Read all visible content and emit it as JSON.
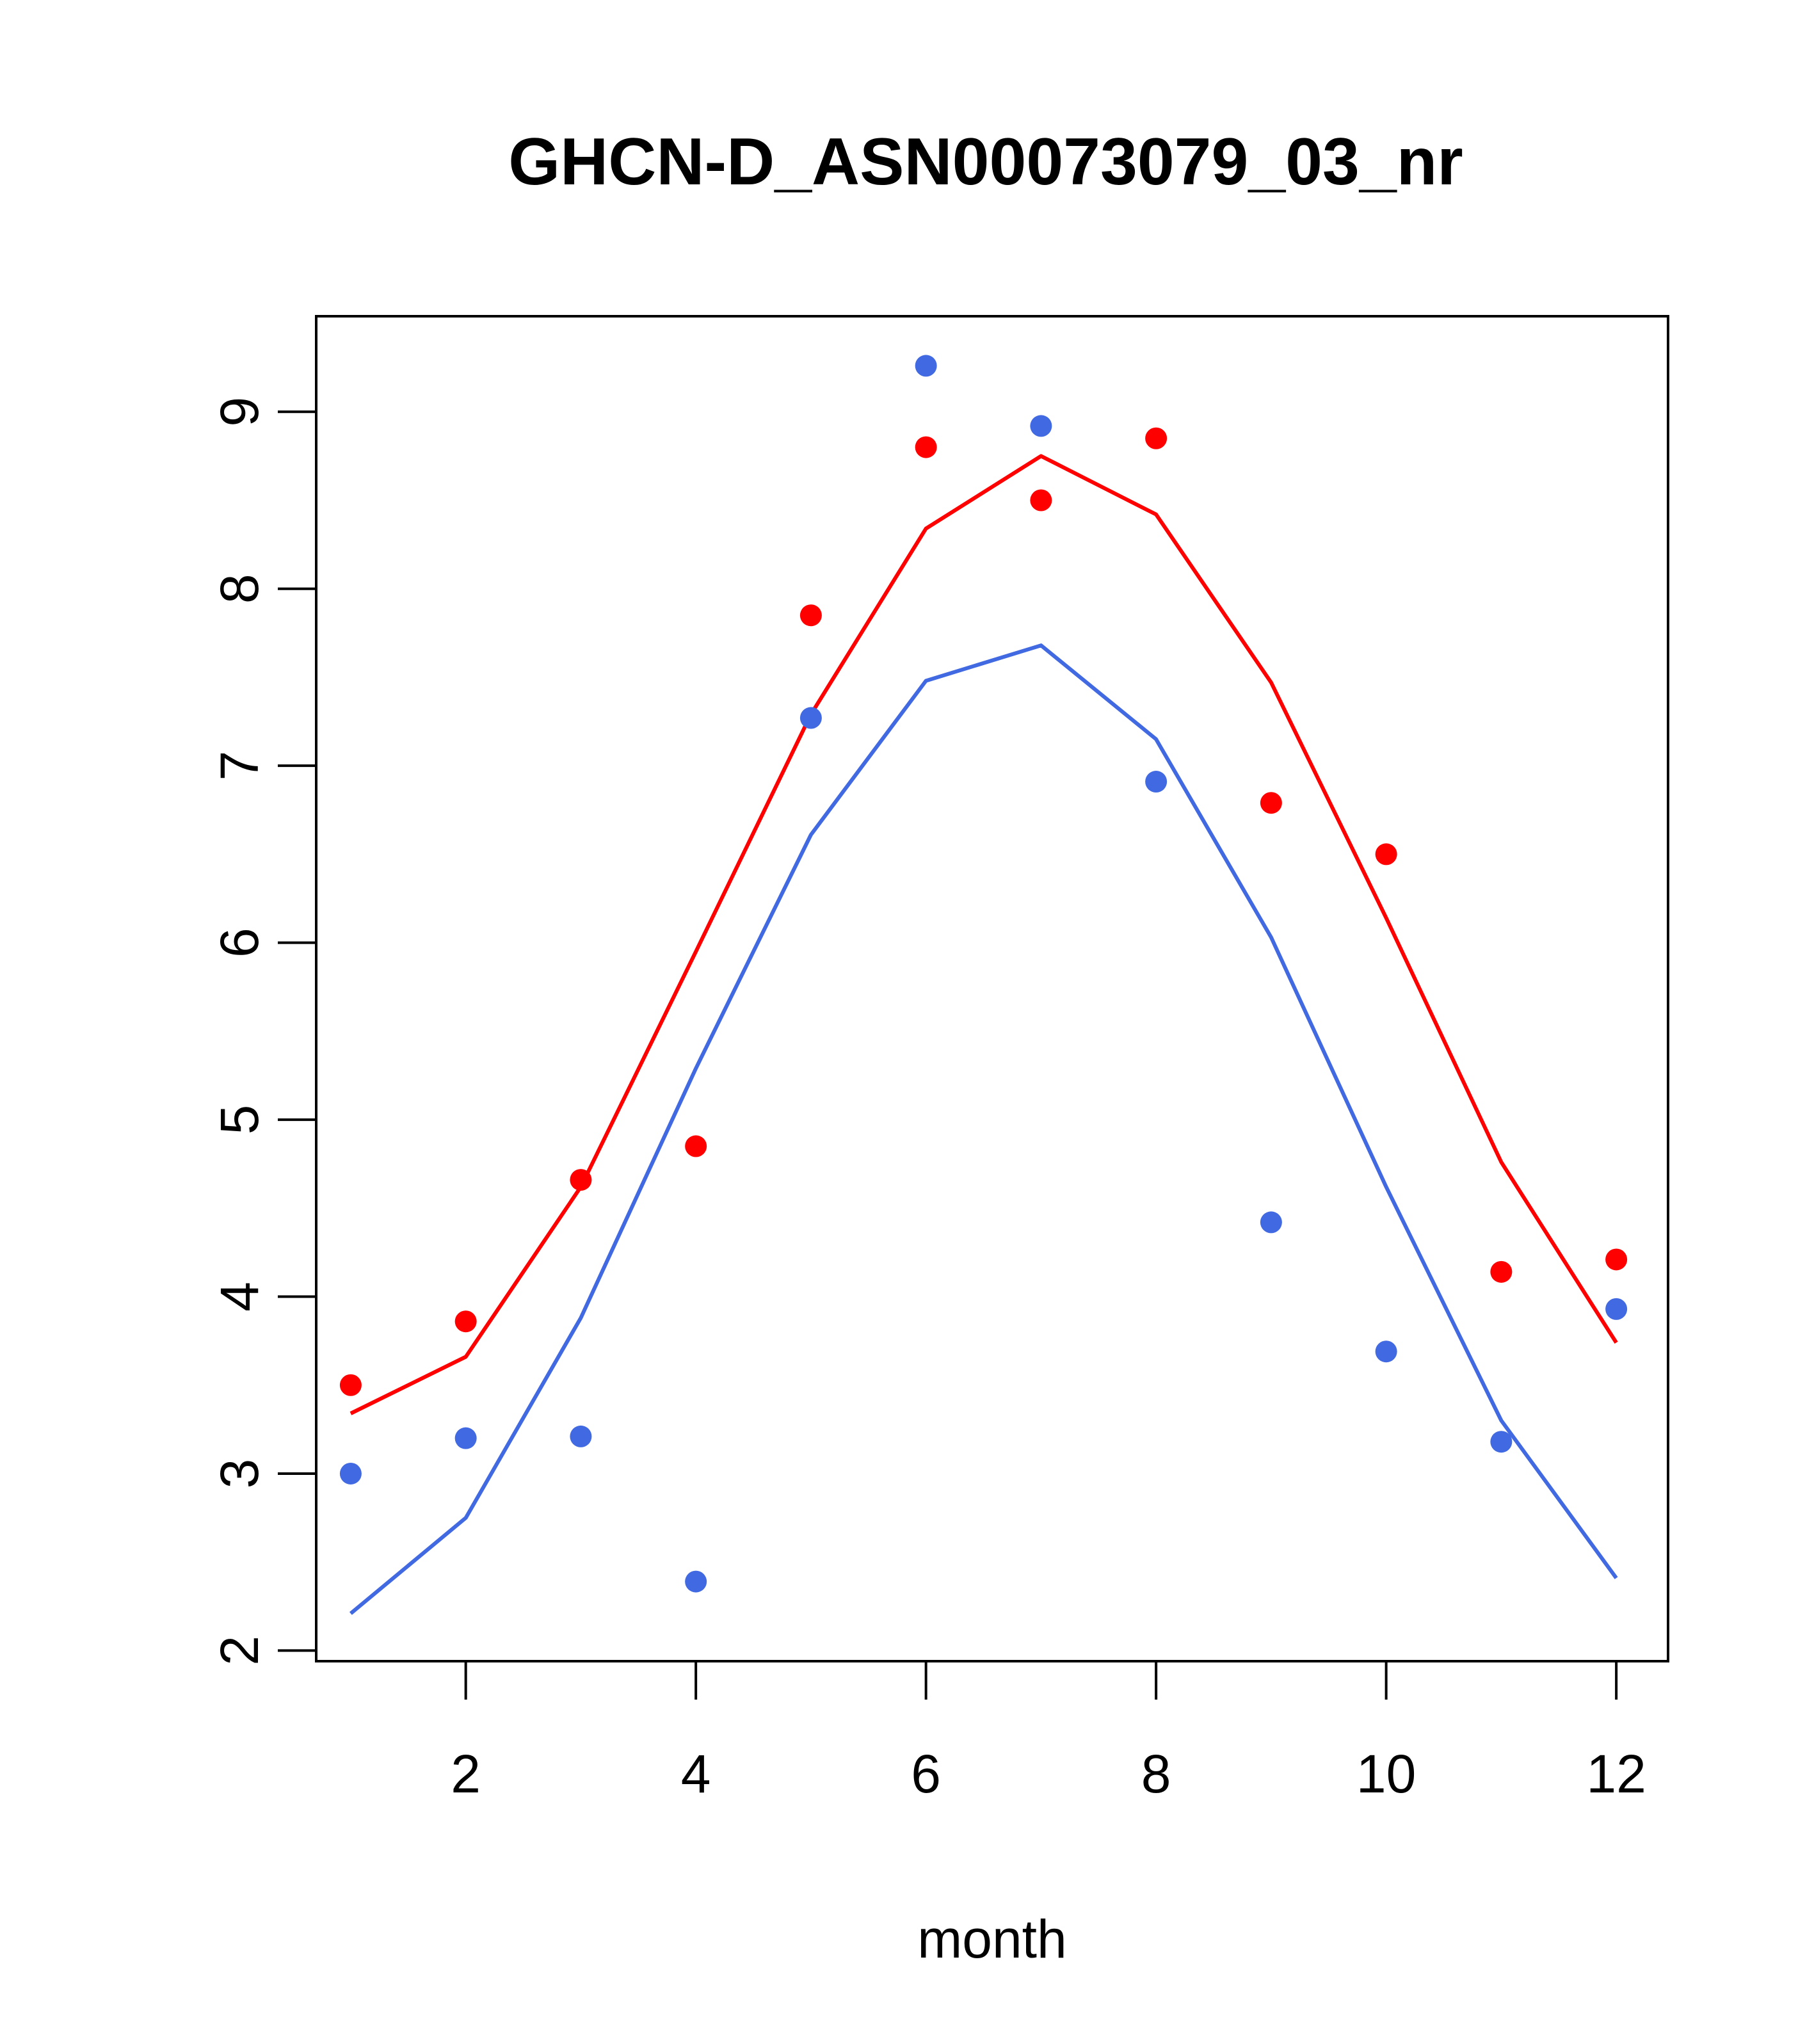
{
  "chart_data": {
    "type": "scatter",
    "title": "GHCN-D_ASN00073079_03_nr",
    "xlabel": "month",
    "ylabel": "",
    "xlim": [
      0.7,
      12.45
    ],
    "ylim": [
      1.94,
      9.54
    ],
    "x_ticks": [
      2,
      4,
      6,
      8,
      10,
      12
    ],
    "y_ticks": [
      2,
      3,
      4,
      5,
      6,
      7,
      8,
      9
    ],
    "grid": false,
    "legend": "none",
    "series": [
      {
        "color": "#ff0000",
        "x": [
          1,
          2,
          3,
          4,
          5,
          6,
          7,
          8,
          9,
          10,
          11,
          12
        ],
        "points": [
          3.5,
          3.86,
          4.66,
          4.85,
          7.85,
          8.8,
          8.5,
          8.85,
          6.79,
          6.5,
          4.14,
          4.21
        ],
        "line": [
          3.34,
          3.66,
          4.62,
          5.95,
          7.29,
          8.34,
          8.75,
          8.42,
          7.47,
          6.14,
          4.76,
          3.74
        ]
      },
      {
        "color": "#4169e1",
        "x": [
          1,
          2,
          3,
          4,
          5,
          6,
          7,
          8,
          9,
          10,
          11,
          12
        ],
        "points": [
          3.0,
          3.2,
          3.21,
          2.39,
          7.27,
          9.26,
          8.92,
          6.91,
          4.42,
          3.69,
          3.18,
          3.93
        ],
        "line": [
          2.21,
          2.75,
          3.88,
          5.29,
          6.61,
          7.48,
          7.68,
          7.15,
          6.03,
          4.62,
          3.3,
          2.41
        ]
      }
    ]
  }
}
